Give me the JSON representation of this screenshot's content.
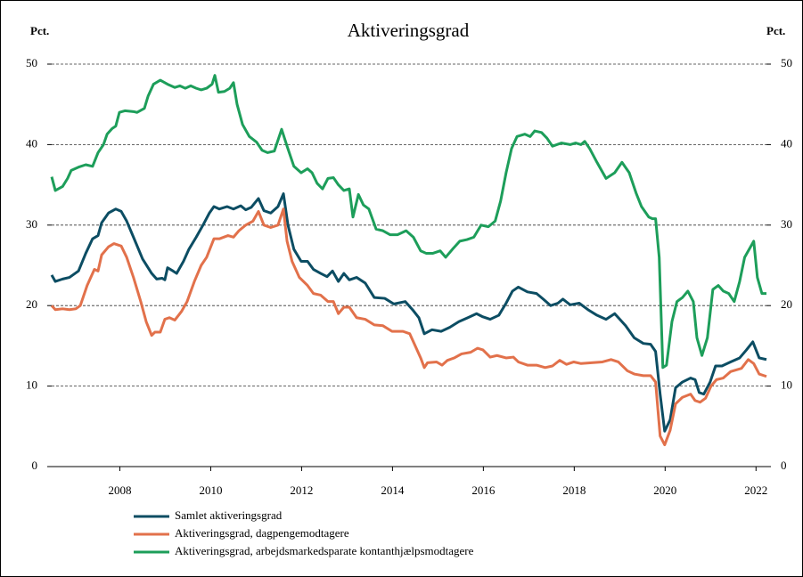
{
  "chart_data": {
    "type": "line",
    "title": "Aktiveringsgrad",
    "ylabel": "Pct.",
    "y2label": "Pct.",
    "xlim": [
      2007,
      2022.73
    ],
    "ylim": [
      0,
      50
    ],
    "yticks": [
      0,
      10,
      20,
      30,
      40,
      50
    ],
    "grid": true,
    "xticks": [
      {
        "value": 2008.5,
        "label": "2008"
      },
      {
        "value": 2010.5,
        "label": "2010"
      },
      {
        "value": 2012.5,
        "label": "2012"
      },
      {
        "value": 2014.5,
        "label": "2014"
      },
      {
        "value": 2016.5,
        "label": "2016"
      },
      {
        "value": 2018.5,
        "label": "2018"
      },
      {
        "value": 2020.5,
        "label": "2020"
      },
      {
        "value": 2022.5,
        "label": "2022"
      }
    ],
    "series": [
      {
        "name": "Samlet aktiveringsgrad",
        "color": "#0c4d63",
        "x": [
          2007.0,
          2007.08,
          2007.24,
          2007.39,
          2007.59,
          2007.75,
          2007.9,
          2008.02,
          2008.1,
          2008.25,
          2008.41,
          2008.53,
          2008.65,
          2008.8,
          2009.0,
          2009.2,
          2009.31,
          2009.43,
          2009.49,
          2009.55,
          2009.67,
          2009.75,
          2009.9,
          2010.02,
          2010.18,
          2010.33,
          2010.47,
          2010.57,
          2010.69,
          2010.86,
          2011.0,
          2011.16,
          2011.27,
          2011.39,
          2011.55,
          2011.67,
          2011.82,
          2011.98,
          2012.1,
          2012.2,
          2012.33,
          2012.49,
          2012.63,
          2012.76,
          2012.92,
          2013.06,
          2013.18,
          2013.31,
          2013.43,
          2013.55,
          2013.71,
          2013.9,
          2014.1,
          2014.33,
          2014.53,
          2014.78,
          2014.94,
          2015.08,
          2015.2,
          2015.37,
          2015.57,
          2015.76,
          2015.96,
          2016.16,
          2016.35,
          2016.49,
          2016.65,
          2016.84,
          2017.0,
          2017.14,
          2017.27,
          2017.47,
          2017.67,
          2017.82,
          2017.98,
          2018.14,
          2018.25,
          2018.41,
          2018.61,
          2018.8,
          2019.0,
          2019.2,
          2019.39,
          2019.63,
          2019.82,
          2020.02,
          2020.18,
          2020.29,
          2020.39,
          2020.49,
          2020.61,
          2020.73,
          2020.88,
          2021.06,
          2021.16,
          2021.25,
          2021.35,
          2021.49,
          2021.61,
          2021.75,
          2021.94,
          2022.14,
          2022.29,
          2022.43,
          2022.57,
          2022.73
        ],
        "values": [
          23.8,
          23.0,
          23.3,
          23.5,
          24.3,
          26.5,
          28.3,
          28.7,
          30.3,
          31.5,
          32.0,
          31.7,
          30.5,
          28.5,
          25.8,
          24.0,
          23.3,
          23.4,
          23.2,
          24.7,
          24.3,
          24.0,
          25.5,
          27.0,
          28.5,
          30.0,
          31.5,
          32.3,
          32.0,
          32.3,
          32.0,
          32.4,
          31.9,
          32.2,
          33.3,
          31.8,
          31.5,
          32.3,
          33.9,
          30.0,
          27.0,
          25.5,
          25.5,
          24.5,
          24.0,
          23.6,
          24.3,
          23.0,
          24.0,
          23.2,
          23.5,
          22.8,
          21.0,
          20.9,
          20.2,
          20.5,
          19.5,
          18.5,
          16.5,
          17.0,
          16.8,
          17.3,
          18.0,
          18.5,
          19.0,
          18.6,
          18.3,
          18.8,
          20.3,
          21.8,
          22.3,
          21.7,
          21.5,
          20.8,
          20.0,
          20.3,
          20.8,
          20.1,
          20.3,
          19.5,
          18.8,
          18.3,
          19.0,
          17.5,
          16.0,
          15.3,
          15.2,
          14.3,
          9.0,
          4.4,
          5.8,
          9.8,
          10.5,
          11.0,
          10.8,
          9.2,
          9.0,
          10.5,
          12.5,
          12.5,
          13.0,
          13.5,
          14.5,
          15.5,
          13.5,
          13.3
        ]
      },
      {
        "name": "Aktiveringsgrad, dagpengemodtagere",
        "color": "#e2714b",
        "x": [
          2007.0,
          2007.08,
          2007.24,
          2007.39,
          2007.53,
          2007.63,
          2007.78,
          2007.94,
          2008.02,
          2008.1,
          2008.25,
          2008.37,
          2008.53,
          2008.65,
          2008.8,
          2008.96,
          2009.08,
          2009.2,
          2009.27,
          2009.39,
          2009.49,
          2009.59,
          2009.71,
          2009.86,
          2009.98,
          2010.14,
          2010.29,
          2010.41,
          2010.57,
          2010.69,
          2010.88,
          2011.0,
          2011.12,
          2011.27,
          2011.43,
          2011.55,
          2011.67,
          2011.82,
          2011.98,
          2012.1,
          2012.18,
          2012.29,
          2012.45,
          2012.63,
          2012.76,
          2012.92,
          2013.08,
          2013.2,
          2013.31,
          2013.43,
          2013.55,
          2013.71,
          2013.9,
          2014.1,
          2014.29,
          2014.49,
          2014.73,
          2014.88,
          2015.0,
          2015.12,
          2015.2,
          2015.27,
          2015.47,
          2015.59,
          2015.71,
          2015.86,
          2016.02,
          2016.22,
          2016.37,
          2016.49,
          2016.65,
          2016.8,
          2017.0,
          2017.16,
          2017.27,
          2017.47,
          2017.67,
          2017.86,
          2018.02,
          2018.18,
          2018.33,
          2018.49,
          2018.65,
          2018.88,
          2019.12,
          2019.31,
          2019.47,
          2019.67,
          2019.82,
          2020.02,
          2020.18,
          2020.29,
          2020.39,
          2020.49,
          2020.61,
          2020.73,
          2020.88,
          2021.06,
          2021.16,
          2021.27,
          2021.39,
          2021.51,
          2021.63,
          2021.78,
          2021.94,
          2022.18,
          2022.33,
          2022.45,
          2022.57,
          2022.73
        ],
        "values": [
          20.0,
          19.5,
          19.6,
          19.5,
          19.6,
          20.0,
          22.5,
          24.5,
          24.3,
          26.3,
          27.3,
          27.7,
          27.4,
          26.0,
          23.5,
          20.5,
          18.0,
          16.3,
          16.7,
          16.7,
          18.3,
          18.5,
          18.2,
          19.3,
          20.5,
          23.0,
          25.0,
          26.0,
          28.3,
          28.3,
          28.7,
          28.5,
          29.3,
          30.0,
          30.5,
          31.7,
          30.0,
          29.7,
          30.0,
          32.0,
          28.0,
          25.5,
          23.5,
          22.5,
          21.5,
          21.3,
          20.5,
          20.5,
          19.0,
          19.8,
          19.8,
          18.5,
          18.3,
          17.6,
          17.5,
          16.8,
          16.8,
          16.5,
          15.0,
          13.5,
          12.3,
          12.9,
          13.0,
          12.6,
          13.2,
          13.5,
          14.0,
          14.2,
          14.7,
          14.5,
          13.6,
          13.8,
          13.5,
          13.6,
          13.0,
          12.6,
          12.6,
          12.3,
          12.5,
          13.2,
          12.7,
          13.0,
          12.8,
          12.9,
          13.0,
          13.3,
          13.0,
          11.9,
          11.5,
          11.3,
          11.3,
          10.5,
          3.8,
          2.7,
          4.5,
          7.8,
          8.6,
          9.0,
          8.2,
          8.0,
          8.5,
          10.0,
          10.8,
          11.0,
          11.8,
          12.2,
          13.3,
          12.8,
          11.5,
          11.2
        ]
      },
      {
        "name": "Aktiveringsgrad, arbejdsmarkedsparate kontanthjælpsmodtagere",
        "color": "#1d9e5a",
        "x": [
          2007.0,
          2007.08,
          2007.24,
          2007.35,
          2007.43,
          2007.59,
          2007.75,
          2007.9,
          2008.02,
          2008.14,
          2008.22,
          2008.33,
          2008.41,
          2008.49,
          2008.61,
          2008.8,
          2008.88,
          2009.04,
          2009.12,
          2009.24,
          2009.39,
          2009.55,
          2009.71,
          2009.82,
          2009.94,
          2010.06,
          2010.18,
          2010.29,
          2010.41,
          2010.53,
          2010.59,
          2010.67,
          2010.8,
          2010.92,
          2011.0,
          2011.08,
          2011.2,
          2011.35,
          2011.51,
          2011.63,
          2011.75,
          2011.9,
          2012.06,
          2012.18,
          2012.33,
          2012.49,
          2012.63,
          2012.73,
          2012.84,
          2012.96,
          2013.08,
          2013.2,
          2013.31,
          2013.43,
          2013.55,
          2013.63,
          2013.75,
          2013.86,
          2013.98,
          2014.14,
          2014.29,
          2014.45,
          2014.61,
          2014.8,
          2014.96,
          2015.12,
          2015.24,
          2015.39,
          2015.55,
          2015.67,
          2015.82,
          2015.98,
          2016.14,
          2016.29,
          2016.45,
          2016.61,
          2016.76,
          2016.88,
          2017.0,
          2017.12,
          2017.24,
          2017.41,
          2017.53,
          2017.63,
          2017.78,
          2017.9,
          2018.02,
          2018.22,
          2018.41,
          2018.53,
          2018.65,
          2018.73,
          2018.84,
          2019.0,
          2019.2,
          2019.39,
          2019.55,
          2019.71,
          2019.86,
          2019.98,
          2020.14,
          2020.22,
          2020.29,
          2020.37,
          2020.45,
          2020.53,
          2020.65,
          2020.76,
          2020.88,
          2021.0,
          2021.12,
          2021.2,
          2021.31,
          2021.43,
          2021.55,
          2021.67,
          2021.78,
          2021.9,
          2022.02,
          2022.14,
          2022.25,
          2022.37,
          2022.45,
          2022.53,
          2022.63,
          2022.73
        ],
        "values": [
          36.0,
          34.3,
          34.8,
          35.8,
          36.8,
          37.2,
          37.5,
          37.3,
          39.0,
          40.0,
          41.3,
          42.0,
          42.3,
          44.0,
          44.2,
          44.1,
          44.0,
          44.5,
          46.0,
          47.5,
          48.0,
          47.5,
          47.1,
          47.3,
          47.0,
          47.3,
          47.0,
          46.8,
          47.0,
          47.5,
          48.6,
          46.5,
          46.6,
          47.0,
          47.7,
          45.0,
          42.5,
          41.0,
          40.3,
          39.3,
          39.0,
          39.2,
          41.9,
          39.8,
          37.3,
          36.5,
          37.0,
          36.5,
          35.2,
          34.5,
          35.8,
          35.9,
          35.0,
          34.3,
          34.5,
          31.0,
          33.8,
          32.5,
          32.0,
          29.5,
          29.3,
          28.8,
          28.8,
          29.3,
          28.5,
          26.8,
          26.5,
          26.5,
          26.8,
          26.0,
          27.0,
          28.0,
          28.2,
          28.5,
          30.0,
          29.8,
          30.5,
          33.0,
          36.5,
          39.5,
          41.0,
          41.3,
          41.0,
          41.7,
          41.5,
          40.8,
          39.8,
          40.2,
          40.0,
          40.2,
          40.0,
          40.4,
          39.5,
          37.8,
          35.8,
          36.5,
          37.8,
          36.5,
          34.0,
          32.3,
          31.0,
          30.8,
          30.8,
          26.0,
          12.3,
          12.6,
          18.0,
          20.5,
          21.0,
          21.8,
          20.5,
          16.0,
          13.8,
          16.0,
          22.0,
          22.5,
          21.8,
          21.5,
          20.5,
          23.0,
          26.0,
          27.2,
          28.0,
          23.5,
          21.5,
          21.5
        ]
      }
    ]
  }
}
